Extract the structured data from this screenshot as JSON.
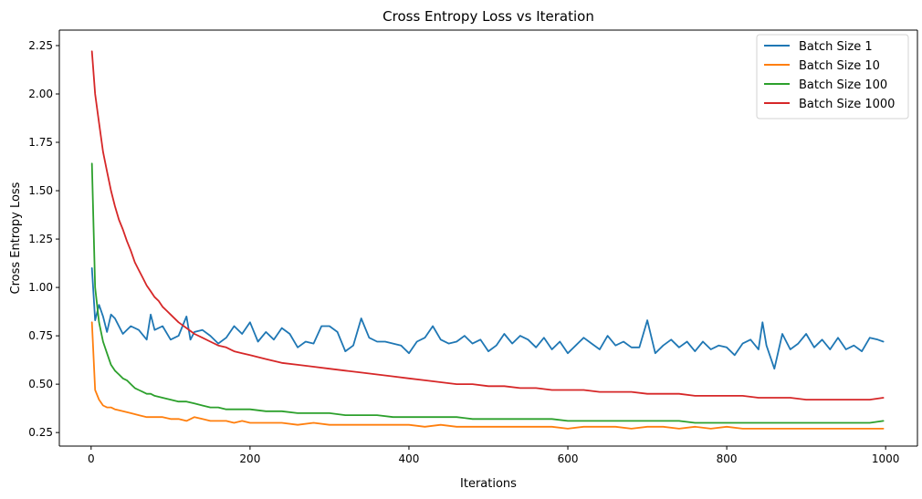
{
  "chart_data": {
    "type": "line",
    "title": "Cross Entropy Loss vs Iteration",
    "xlabel": "Iterations",
    "ylabel": "Cross Entropy Loss",
    "xlim": [
      -40,
      1040
    ],
    "ylim": [
      0.18,
      2.33
    ],
    "xticks": [
      0,
      200,
      400,
      600,
      800,
      1000
    ],
    "xtick_labels": [
      "0",
      "200",
      "400",
      "600",
      "800",
      "1000"
    ],
    "yticks": [
      0.25,
      0.5,
      0.75,
      1.0,
      1.25,
      1.5,
      1.75,
      2.0,
      2.25
    ],
    "ytick_labels": [
      "0.25",
      "0.50",
      "0.75",
      "1.00",
      "1.25",
      "1.50",
      "1.75",
      "2.00",
      "2.25"
    ],
    "grid": false,
    "legend_position": "top-right",
    "series": [
      {
        "name": "Batch Size 1",
        "color": "#1f77b4",
        "x": [
          1,
          5,
          10,
          15,
          20,
          25,
          30,
          40,
          50,
          60,
          70,
          75,
          80,
          90,
          100,
          110,
          120,
          125,
          130,
          140,
          150,
          160,
          170,
          180,
          190,
          200,
          210,
          220,
          230,
          240,
          250,
          260,
          270,
          280,
          290,
          300,
          310,
          320,
          330,
          340,
          350,
          360,
          370,
          380,
          390,
          400,
          410,
          420,
          430,
          440,
          450,
          460,
          470,
          480,
          490,
          500,
          510,
          520,
          530,
          540,
          550,
          560,
          570,
          580,
          590,
          600,
          610,
          620,
          630,
          640,
          650,
          660,
          670,
          680,
          690,
          700,
          710,
          720,
          730,
          740,
          750,
          760,
          770,
          780,
          790,
          800,
          810,
          820,
          830,
          840,
          845,
          850,
          860,
          870,
          880,
          890,
          900,
          910,
          920,
          930,
          940,
          950,
          960,
          970,
          980,
          990,
          997
        ],
        "values": [
          1.1,
          0.83,
          0.91,
          0.85,
          0.77,
          0.86,
          0.84,
          0.76,
          0.8,
          0.78,
          0.73,
          0.86,
          0.78,
          0.8,
          0.73,
          0.75,
          0.85,
          0.73,
          0.77,
          0.78,
          0.75,
          0.71,
          0.74,
          0.8,
          0.76,
          0.82,
          0.72,
          0.77,
          0.73,
          0.79,
          0.76,
          0.69,
          0.72,
          0.71,
          0.8,
          0.8,
          0.77,
          0.67,
          0.7,
          0.84,
          0.74,
          0.72,
          0.72,
          0.71,
          0.7,
          0.66,
          0.72,
          0.74,
          0.8,
          0.73,
          0.71,
          0.72,
          0.75,
          0.71,
          0.73,
          0.67,
          0.7,
          0.76,
          0.71,
          0.75,
          0.73,
          0.69,
          0.74,
          0.68,
          0.72,
          0.66,
          0.7,
          0.74,
          0.71,
          0.68,
          0.75,
          0.7,
          0.72,
          0.69,
          0.69,
          0.83,
          0.66,
          0.7,
          0.73,
          0.69,
          0.72,
          0.67,
          0.72,
          0.68,
          0.7,
          0.69,
          0.65,
          0.71,
          0.73,
          0.68,
          0.82,
          0.7,
          0.58,
          0.76,
          0.68,
          0.71,
          0.76,
          0.69,
          0.73,
          0.68,
          0.74,
          0.68,
          0.7,
          0.67,
          0.74,
          0.73,
          0.72
        ]
      },
      {
        "name": "Batch Size 10",
        "color": "#ff7f0e",
        "x": [
          1,
          5,
          10,
          15,
          20,
          25,
          30,
          40,
          50,
          60,
          70,
          80,
          90,
          100,
          110,
          120,
          130,
          140,
          150,
          160,
          170,
          180,
          190,
          200,
          220,
          240,
          260,
          280,
          300,
          320,
          340,
          360,
          380,
          400,
          420,
          440,
          460,
          480,
          500,
          520,
          540,
          560,
          580,
          600,
          620,
          640,
          660,
          680,
          700,
          720,
          740,
          760,
          780,
          800,
          820,
          840,
          860,
          880,
          900,
          920,
          940,
          960,
          980,
          997
        ],
        "values": [
          0.82,
          0.47,
          0.42,
          0.39,
          0.38,
          0.38,
          0.37,
          0.36,
          0.35,
          0.34,
          0.33,
          0.33,
          0.33,
          0.32,
          0.32,
          0.31,
          0.33,
          0.32,
          0.31,
          0.31,
          0.31,
          0.3,
          0.31,
          0.3,
          0.3,
          0.3,
          0.29,
          0.3,
          0.29,
          0.29,
          0.29,
          0.29,
          0.29,
          0.29,
          0.28,
          0.29,
          0.28,
          0.28,
          0.28,
          0.28,
          0.28,
          0.28,
          0.28,
          0.27,
          0.28,
          0.28,
          0.28,
          0.27,
          0.28,
          0.28,
          0.27,
          0.28,
          0.27,
          0.28,
          0.27,
          0.27,
          0.27,
          0.27,
          0.27,
          0.27,
          0.27,
          0.27,
          0.27,
          0.27
        ]
      },
      {
        "name": "Batch Size 100",
        "color": "#2ca02c",
        "x": [
          1,
          5,
          10,
          15,
          20,
          25,
          30,
          35,
          40,
          45,
          50,
          55,
          60,
          65,
          70,
          75,
          80,
          90,
          100,
          110,
          120,
          130,
          140,
          150,
          160,
          170,
          180,
          190,
          200,
          220,
          240,
          260,
          280,
          300,
          320,
          340,
          360,
          380,
          400,
          420,
          440,
          460,
          480,
          500,
          520,
          540,
          560,
          580,
          600,
          620,
          640,
          660,
          680,
          700,
          720,
          740,
          760,
          780,
          800,
          820,
          840,
          860,
          880,
          900,
          920,
          940,
          960,
          980,
          997
        ],
        "values": [
          1.64,
          1.0,
          0.82,
          0.72,
          0.66,
          0.6,
          0.57,
          0.55,
          0.53,
          0.52,
          0.5,
          0.48,
          0.47,
          0.46,
          0.45,
          0.45,
          0.44,
          0.43,
          0.42,
          0.41,
          0.41,
          0.4,
          0.39,
          0.38,
          0.38,
          0.37,
          0.37,
          0.37,
          0.37,
          0.36,
          0.36,
          0.35,
          0.35,
          0.35,
          0.34,
          0.34,
          0.34,
          0.33,
          0.33,
          0.33,
          0.33,
          0.33,
          0.32,
          0.32,
          0.32,
          0.32,
          0.32,
          0.32,
          0.31,
          0.31,
          0.31,
          0.31,
          0.31,
          0.31,
          0.31,
          0.31,
          0.3,
          0.3,
          0.3,
          0.3,
          0.3,
          0.3,
          0.3,
          0.3,
          0.3,
          0.3,
          0.3,
          0.3,
          0.31
        ]
      },
      {
        "name": "Batch Size 1000",
        "color": "#d62728",
        "x": [
          1,
          5,
          10,
          15,
          20,
          25,
          30,
          35,
          40,
          45,
          50,
          55,
          60,
          65,
          70,
          75,
          80,
          85,
          90,
          95,
          100,
          110,
          120,
          130,
          140,
          150,
          160,
          170,
          180,
          190,
          200,
          220,
          240,
          260,
          280,
          300,
          320,
          340,
          360,
          380,
          400,
          420,
          440,
          460,
          480,
          500,
          520,
          540,
          560,
          580,
          600,
          620,
          640,
          660,
          680,
          700,
          720,
          740,
          760,
          780,
          800,
          820,
          840,
          860,
          880,
          900,
          920,
          940,
          960,
          980,
          997
        ],
        "values": [
          2.22,
          2.0,
          1.85,
          1.7,
          1.6,
          1.5,
          1.42,
          1.35,
          1.3,
          1.24,
          1.19,
          1.13,
          1.09,
          1.05,
          1.01,
          0.98,
          0.95,
          0.93,
          0.9,
          0.88,
          0.86,
          0.82,
          0.79,
          0.76,
          0.74,
          0.72,
          0.7,
          0.69,
          0.67,
          0.66,
          0.65,
          0.63,
          0.61,
          0.6,
          0.59,
          0.58,
          0.57,
          0.56,
          0.55,
          0.54,
          0.53,
          0.52,
          0.51,
          0.5,
          0.5,
          0.49,
          0.49,
          0.48,
          0.48,
          0.47,
          0.47,
          0.47,
          0.46,
          0.46,
          0.46,
          0.45,
          0.45,
          0.45,
          0.44,
          0.44,
          0.44,
          0.44,
          0.43,
          0.43,
          0.43,
          0.42,
          0.42,
          0.42,
          0.42,
          0.42,
          0.43
        ]
      }
    ]
  }
}
